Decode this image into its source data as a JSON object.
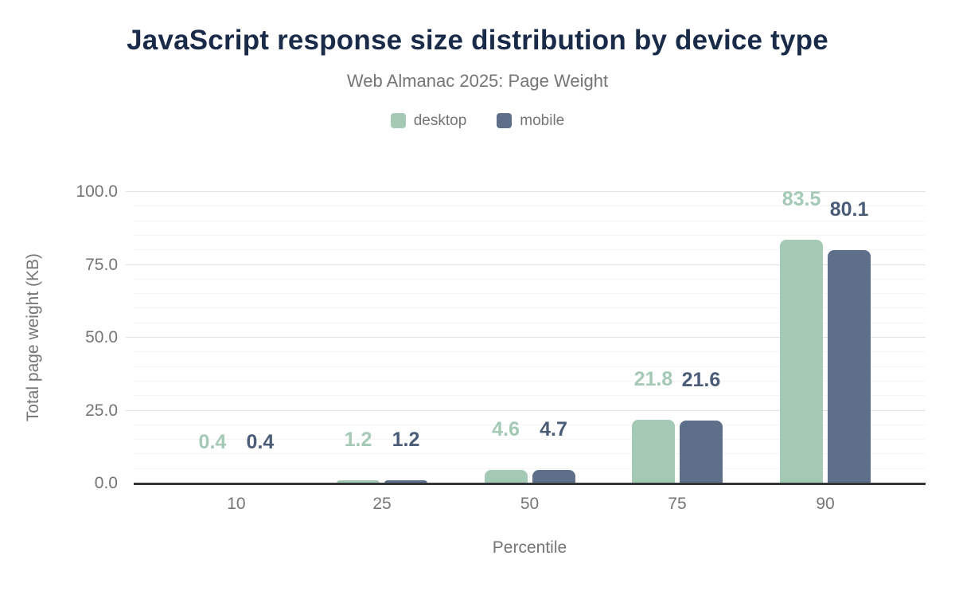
{
  "chart_data": {
    "type": "bar",
    "title": "JavaScript response size distribution by device type",
    "subtitle": "Web Almanac 2025: Page Weight",
    "xlabel": "Percentile",
    "ylabel": "Total page weight (KB)",
    "categories": [
      "10",
      "25",
      "50",
      "75",
      "90"
    ],
    "series": [
      {
        "name": "desktop",
        "color": "#a4c9b5",
        "label_color": "#a4c9b5",
        "values": [
          0.4,
          1.2,
          4.6,
          21.8,
          83.5
        ],
        "labels": [
          "0.4",
          "1.2",
          "4.6",
          "21.8",
          "83.5"
        ]
      },
      {
        "name": "mobile",
        "color": "#5e7089",
        "label_color": "#4b5c77",
        "values": [
          0.4,
          1.2,
          4.7,
          21.6,
          80.1
        ],
        "labels": [
          "0.4",
          "1.2",
          "4.7",
          "21.6",
          "80.1"
        ]
      }
    ],
    "ylim": [
      0,
      100
    ],
    "ytick_step": 25,
    "yminor_step": 5,
    "ytick_labels": [
      "0.0",
      "25.0",
      "50.0",
      "75.0",
      "100.0"
    ],
    "grid": true,
    "legend_position": "top"
  },
  "colors": {
    "title": "#1a2b49",
    "text_muted": "#757575",
    "axis_line": "#333638",
    "gridline_minor": "#f5f5f5",
    "gridline_major": "#e2e2e2"
  }
}
